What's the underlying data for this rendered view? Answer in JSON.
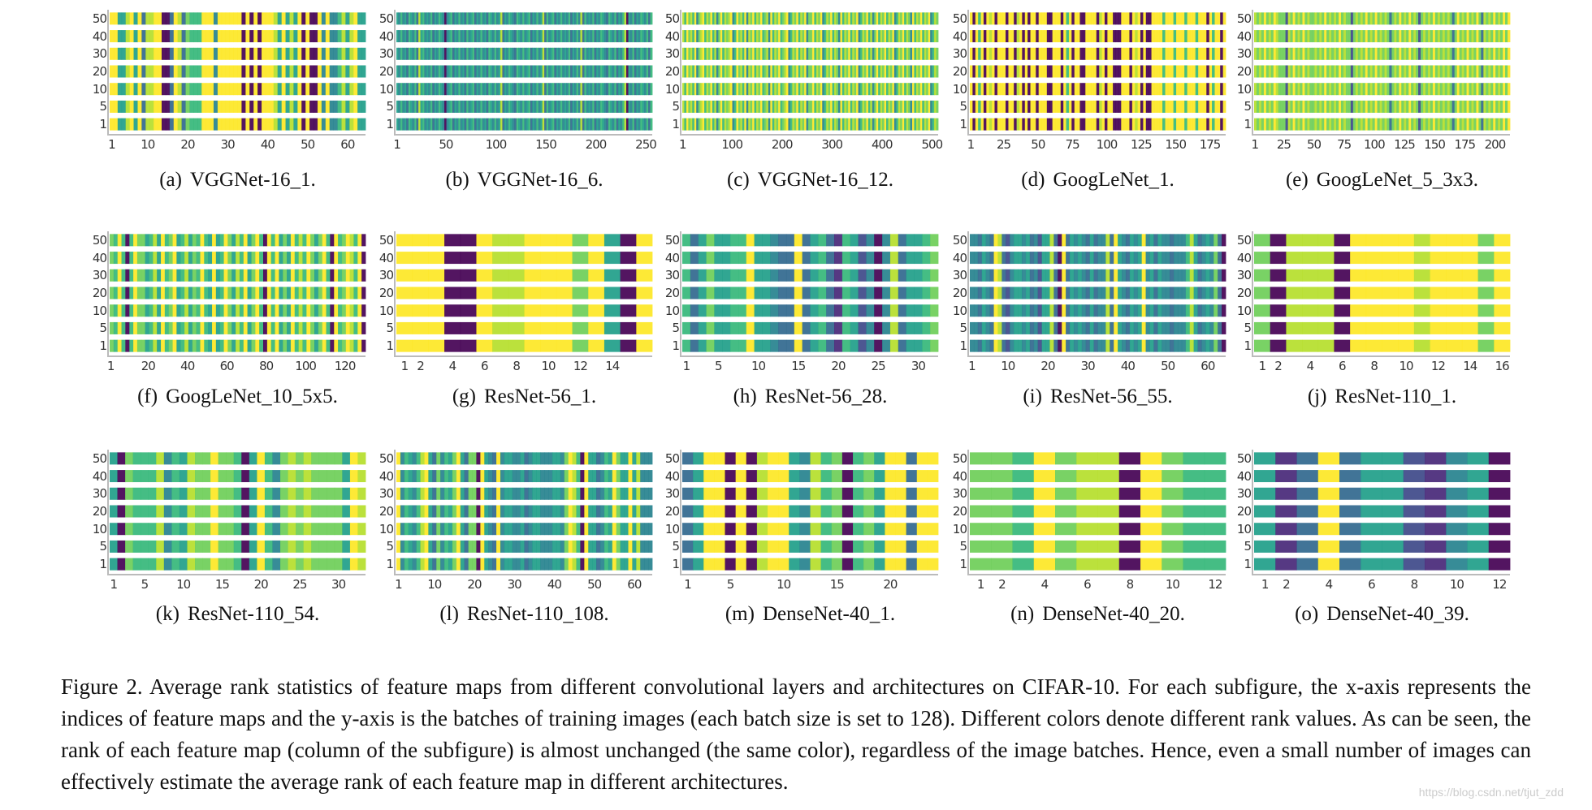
{
  "chart_data": {
    "type": "heatmap",
    "colormap": "viridis",
    "colors": [
      "#440154",
      "#482878",
      "#3e4989",
      "#31688e",
      "#26828e",
      "#1f9e89",
      "#35b779",
      "#6ece58",
      "#b5de2b",
      "#fde725"
    ],
    "y_ticks": [
      "50",
      "40",
      "30",
      "20",
      "10",
      "5",
      "1"
    ],
    "panels": [
      {
        "label": "(a)",
        "name": "VGGNet-16_1.",
        "xrange": [
          1,
          64
        ],
        "xticks": [
          1,
          10,
          20,
          30,
          40,
          50,
          60
        ],
        "values": "9955895938899003983766699949999990909099985958590900949446858955"
      },
      {
        "label": "(b)",
        "name": "VGGNet-16_6.",
        "xrange": [
          1,
          256
        ],
        "xticks": [
          1,
          50,
          100,
          150,
          200,
          250
        ],
        "values": "54645365463856454635465404563546453645635464536546458354654365464563546458364563546454635464836454635465436546354680546354654636"
      },
      {
        "label": "(c)",
        "name": "VGGNet-16_12.",
        "xrange": [
          1,
          512
        ],
        "xticks": [
          1,
          100,
          200,
          300,
          400,
          500
        ],
        "values": "86978694789687968479687894697869487968796784968796789468796879477968794687968749687968794687968479687968794687968749687968794687"
      },
      {
        "label": "(d)",
        "name": "GoogLeNet_1.",
        "xrange": [
          1,
          186
        ],
        "xticks": [
          1,
          25,
          50,
          75,
          100,
          125,
          150,
          175
        ],
        "values": "909690989099909908909099099900999096909900999908909900099909890900999969996999699969990969909"
      },
      {
        "label": "(e)",
        "name": "GoogLeNet_5_3x3.",
        "xrange": [
          1,
          212
        ],
        "xticks": [
          1,
          25,
          50,
          75,
          100,
          125,
          150,
          175,
          200
        ],
        "values": "8787978798777287978797877878797878797877278787978797878737879787978727878797878787379787978797387879787979"
      },
      {
        "label": "(f)",
        "name": "GoogLeNet_10_5x5.",
        "xrange": [
          1,
          130
        ],
        "xticks": [
          1,
          20,
          40,
          60,
          80,
          100,
          120
        ],
        "values": "76960697756859679568576965956975869579609695759686975796096798690"
      },
      {
        "label": "(g)",
        "name": "ResNet-56_1.",
        "xrange": [
          1,
          16
        ],
        "xticks": [
          1,
          2,
          4,
          6,
          8,
          10,
          12,
          14
        ],
        "values": "9990098899979509"
      },
      {
        "label": "(h)",
        "name": "ResNet-56_28.",
        "xrange": [
          1,
          32
        ],
        "xticks": [
          1,
          5,
          10,
          15,
          20,
          25,
          30
        ],
        "values": "63575566955433935631652404835567"
      },
      {
        "label": "(i)",
        "name": "ResNet-56_55.",
        "xrange": [
          1,
          64
        ],
        "xticks": [
          1,
          10,
          20,
          30,
          40,
          50,
          60
        ],
        "values": "4435439832455453425583093545435344839543545945354434446853454730"
      },
      {
        "label": "(j)",
        "name": "ResNet-110_1.",
        "xrange": [
          1,
          16
        ],
        "xticks": [
          1,
          2,
          4,
          6,
          8,
          10,
          12,
          14,
          16
        ],
        "values": "7088809999899979"
      },
      {
        "label": "(k)",
        "name": "ResNet-110_54.",
        "xrange": [
          1,
          33
        ],
        "xticks": [
          1,
          5,
          10,
          15,
          20,
          25,
          30
        ],
        "values": "507666846587797760596478787777598"
      },
      {
        "label": "(l)",
        "name": "ResNet-110_108.",
        "xrange": [
          1,
          64
        ],
        "xticks": [
          1,
          10,
          20,
          30,
          40,
          50,
          60
        ],
        "values": "9465468953746579537709543945544534554445547986095534659755958444"
      },
      {
        "label": "(m)",
        "name": "DenseNet-40_1.",
        "xrange": [
          1,
          24
        ],
        "xticks": [
          1,
          5,
          10,
          15,
          20
        ],
        "values": "359909089954867067599399"
      },
      {
        "label": "(n)",
        "name": "DenseNet-40_20.",
        "xrange": [
          1,
          12
        ],
        "xticks": [
          1,
          2,
          4,
          6,
          8,
          10,
          12
        ],
        "values": "776978809766"
      },
      {
        "label": "(o)",
        "name": "DenseNet-40_39.",
        "xrange": [
          1,
          12
        ],
        "xticks": [
          1,
          2,
          4,
          6,
          8,
          10,
          12
        ],
        "values": "513935521450"
      }
    ]
  },
  "caption": "Figure 2. Average rank statistics of feature maps from different convolutional layers and architectures on CIFAR-10. For each subfigure, the x-axis represents the indices of feature maps and the y-axis is the batches of training images (each batch size is set to 128). Different colors denote different rank values. As can be seen, the rank of each feature map (column of the subfigure) is almost unchanged (the same color), regardless of the image batches. Hence, even a small number of images can effectively estimate the average rank of each feature map in different architectures.",
  "watermark": "https://blog.csdn.net/tjut_zdd"
}
